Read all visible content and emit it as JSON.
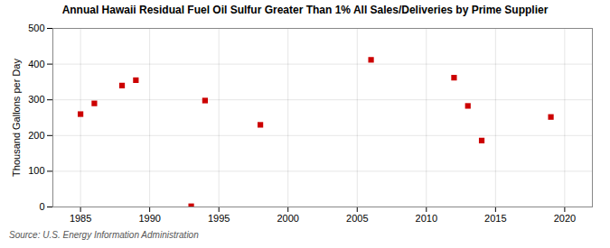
{
  "chart_data": {
    "type": "scatter",
    "title": "Annual Hawaii Residual Fuel Oil Sulfur Greater Than 1% All Sales/Deliveries by Prime Supplier",
    "ylabel": "Thousand Gallons per Day",
    "source": "Source: U.S. Energy Information Administration",
    "x": [
      1985,
      1986,
      1988,
      1989,
      1993,
      1994,
      1998,
      2006,
      2012,
      2013,
      2014,
      2019
    ],
    "values": [
      260,
      290,
      340,
      355,
      2,
      298,
      230,
      412,
      362,
      283,
      186,
      252
    ],
    "color": "#cc0000",
    "marker": "square",
    "xlim": [
      1983,
      2022
    ],
    "xticks": [
      1985,
      1990,
      1995,
      2000,
      2005,
      2010,
      2015,
      2020
    ],
    "ylim": [
      0,
      500
    ],
    "yticks": [
      0,
      100,
      200,
      300,
      400,
      500
    ],
    "grid": true
  }
}
